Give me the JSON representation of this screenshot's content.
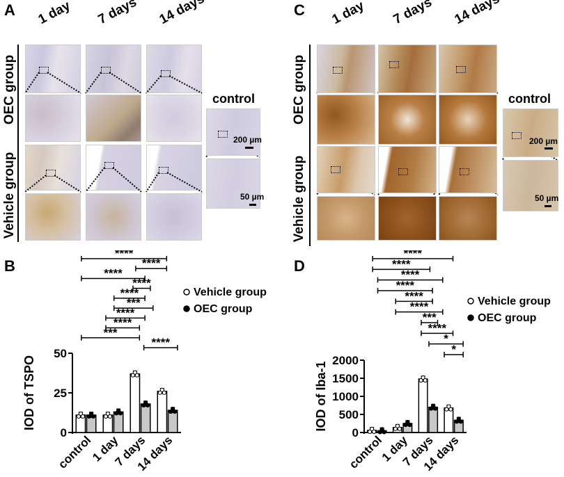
{
  "panels": {
    "A": {
      "label": "A",
      "columns": [
        "1 day",
        "7 days",
        "14 days"
      ],
      "rows": [
        "OEC group",
        "Vehicle group"
      ],
      "control_label": "control",
      "scale_large": "200 µm",
      "scale_small": "50 µm"
    },
    "C": {
      "label": "C",
      "columns": [
        "1 day",
        "7 days",
        "14 days"
      ],
      "rows": [
        "OEC group",
        "Vehicle group"
      ],
      "control_label": "control",
      "scale_large": "200 µm",
      "scale_small": "50 µm"
    }
  },
  "chart_data": [
    {
      "panel": "B",
      "type": "bar",
      "categories": [
        "control",
        "1 day",
        "7 days",
        "14 days"
      ],
      "series": [
        {
          "name": "Vehicle group",
          "values": [
            11,
            11,
            37,
            26
          ],
          "color": "#ffffff"
        },
        {
          "name": "OEC group",
          "values": [
            11,
            13,
            18,
            14
          ],
          "color": "#c8c8c8"
        }
      ],
      "ylabel": "IOD of  TSPO",
      "ylim": [
        0,
        50
      ],
      "yticks": [
        "0",
        "25",
        "50"
      ],
      "legend": [
        "Vehicle group",
        "OEC group"
      ],
      "significance": [
        "****",
        "****",
        "****",
        "****",
        "****",
        "***",
        "****",
        "****",
        "***",
        "****"
      ]
    },
    {
      "panel": "D",
      "type": "bar",
      "categories": [
        "control",
        "1 day",
        "7 days",
        "14 days"
      ],
      "series": [
        {
          "name": "Vehicle group",
          "values": [
            60,
            140,
            1480,
            680
          ],
          "color": "#ffffff"
        },
        {
          "name": "OEC group",
          "values": [
            50,
            250,
            700,
            340
          ],
          "color": "#c8c8c8"
        }
      ],
      "ylabel": "IOD of  Iba-1",
      "ylim": [
        0,
        2000
      ],
      "yticks": [
        "0",
        "500",
        "1000",
        "1500",
        "2000"
      ],
      "legend": [
        "Vehicle group",
        "OEC group"
      ],
      "significance": [
        "****",
        "****",
        "****",
        "****",
        "****",
        "****",
        "***",
        "****",
        "*",
        "*"
      ]
    }
  ],
  "labels": {
    "B": "B",
    "D": "D"
  }
}
